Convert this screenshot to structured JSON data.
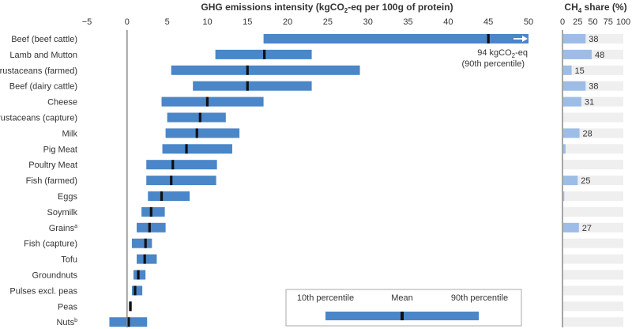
{
  "chart_data": [
    {
      "type": "range-bar",
      "title": "GHG emissions intensity (kgCO",
      "title_sub": "2",
      "title_tail": "-eq per 100g of protein)",
      "xlim": [
        -5,
        50
      ],
      "xticks": [
        -5,
        0,
        5,
        10,
        15,
        20,
        25,
        30,
        35,
        40,
        45,
        50
      ],
      "grid": false,
      "bar_color": "#4a86c8",
      "mean_color": "#111111",
      "categories": [
        "Beef (beef cattle)",
        "Lamb and Mutton",
        "Crustaceans (farmed)",
        "Beef (dairy cattle)",
        "Cheese",
        "Crustaceans (capture)",
        "Milk",
        "Pig Meat",
        "Poultry Meat",
        "Fish (farmed)",
        "Eggs",
        "Soymilk",
        "Grains",
        "Fish (capture)",
        "Tofu",
        "Groundnuts",
        "Pulses excl. peas",
        "Peas",
        "Nuts"
      ],
      "superscripts": [
        "",
        "",
        "",
        "",
        "",
        "",
        "",
        "",
        "",
        "",
        "",
        "",
        "a",
        "",
        "",
        "",
        "",
        "",
        "b"
      ],
      "p10": [
        17,
        11,
        5.5,
        8.2,
        4.3,
        5,
        4.8,
        4.4,
        2.4,
        2.4,
        2.6,
        1.8,
        1.2,
        0.6,
        1.2,
        0.8,
        0.6,
        0.3,
        -2.2
      ],
      "mean": [
        45,
        17.1,
        15,
        15,
        10,
        9.1,
        8.7,
        7.4,
        5.7,
        5.5,
        4.3,
        3,
        2.8,
        2.3,
        2.2,
        1.4,
        1,
        0.4,
        0.2
      ],
      "p90": [
        94,
        23,
        29,
        23,
        17,
        12.3,
        14,
        13.1,
        11.2,
        11.1,
        7.8,
        4.7,
        4.8,
        3.1,
        3.7,
        2.3,
        1.9,
        0.6,
        2.5
      ],
      "annotation": {
        "line1": "94 kgCO",
        "line1_sub": "2",
        "line1_tail": "-eq",
        "line2": "(90th percentile)"
      },
      "legend": {
        "p10_label": "10th percentile",
        "mean_label": "Mean",
        "p90_label": "90th percentile"
      }
    },
    {
      "type": "bar",
      "title": "CH",
      "title_sub": "4",
      "title_tail": " share (%)",
      "xlim": [
        0,
        100
      ],
      "xticks": [
        0,
        25,
        50,
        75,
        100
      ],
      "bar_color": "#9dbde6",
      "background_color": "#efefef",
      "values": [
        38,
        48,
        15,
        38,
        31,
        0,
        28,
        5,
        0,
        25,
        3,
        0,
        27,
        0,
        0,
        0,
        0,
        0,
        0
      ],
      "labels": [
        "38",
        "48",
        "15",
        "38",
        "31",
        "",
        "28",
        "",
        "",
        "25",
        "",
        "",
        "27",
        "",
        "",
        "",
        "",
        "",
        ""
      ]
    }
  ]
}
